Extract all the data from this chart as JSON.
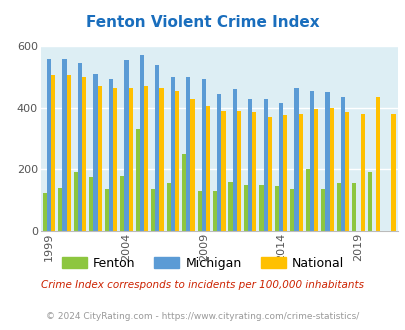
{
  "title": "Fenton Violent Crime Index",
  "years": [
    1999,
    2000,
    2001,
    2002,
    2003,
    2004,
    2005,
    2006,
    2007,
    2008,
    2009,
    2010,
    2011,
    2012,
    2013,
    2014,
    2015,
    2016,
    2017,
    2018,
    2019,
    2020,
    2021
  ],
  "fenton": [
    125,
    140,
    190,
    175,
    135,
    180,
    330,
    135,
    155,
    250,
    130,
    130,
    160,
    150,
    150,
    145,
    135,
    200,
    135,
    155,
    155,
    190,
    0
  ],
  "michigan": [
    560,
    560,
    545,
    510,
    495,
    555,
    570,
    540,
    500,
    500,
    495,
    445,
    460,
    430,
    430,
    415,
    465,
    455,
    450,
    435,
    0,
    0,
    0
  ],
  "national": [
    505,
    505,
    500,
    470,
    465,
    465,
    470,
    465,
    455,
    430,
    405,
    390,
    390,
    385,
    370,
    375,
    380,
    395,
    400,
    385,
    380,
    435,
    380
  ],
  "fenton_color": "#8dc63f",
  "michigan_color": "#5b9bd5",
  "national_color": "#ffc000",
  "bg_color": "#ddeef4",
  "ylim": [
    0,
    600
  ],
  "yticks": [
    0,
    200,
    400,
    600
  ],
  "xlabel_years": [
    1999,
    2004,
    2009,
    2014,
    2019
  ],
  "subtitle": "Crime Index corresponds to incidents per 100,000 inhabitants",
  "copyright": "© 2024 CityRating.com - https://www.cityrating.com/crime-statistics/",
  "legend_labels": [
    "Fenton",
    "Michigan",
    "National"
  ],
  "title_color": "#1a6ebd",
  "subtitle_color": "#cc2200",
  "copyright_color": "#999999"
}
